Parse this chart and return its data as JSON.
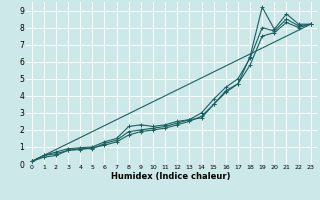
{
  "xlabel": "Humidex (Indice chaleur)",
  "bg_color": "#cce8e8",
  "grid_color": "#ffffff",
  "line_color": "#1a6060",
  "xlim": [
    -0.5,
    23.5
  ],
  "ylim": [
    0,
    9.5
  ],
  "xticks": [
    0,
    1,
    2,
    3,
    4,
    5,
    6,
    7,
    8,
    9,
    10,
    11,
    12,
    13,
    14,
    15,
    16,
    17,
    18,
    19,
    20,
    21,
    22,
    23
  ],
  "yticks": [
    0,
    1,
    2,
    3,
    4,
    5,
    6,
    7,
    8,
    9
  ],
  "line1_x": [
    0,
    1,
    2,
    3,
    4,
    5,
    6,
    7,
    8,
    9,
    10,
    11,
    12,
    13,
    14,
    15,
    16,
    17,
    18,
    19,
    20,
    21,
    22,
    23
  ],
  "line1_y": [
    0.15,
    0.5,
    0.7,
    0.9,
    0.95,
    1.0,
    1.3,
    1.5,
    2.2,
    2.3,
    2.2,
    2.3,
    2.5,
    2.6,
    2.7,
    3.5,
    4.3,
    4.7,
    6.3,
    9.2,
    7.9,
    8.8,
    8.2,
    8.2
  ],
  "line2_x": [
    0,
    1,
    2,
    3,
    4,
    5,
    6,
    7,
    8,
    9,
    10,
    11,
    12,
    13,
    14,
    15,
    16,
    17,
    18,
    19,
    20,
    21,
    22,
    23
  ],
  "line2_y": [
    0.15,
    0.5,
    0.6,
    0.8,
    0.9,
    0.9,
    1.2,
    1.4,
    1.9,
    2.0,
    2.1,
    2.2,
    2.4,
    2.6,
    3.0,
    3.8,
    4.5,
    5.0,
    6.2,
    8.0,
    7.8,
    8.5,
    8.1,
    8.2
  ],
  "line3_x": [
    0,
    1,
    2,
    3,
    4,
    5,
    6,
    7,
    8,
    9,
    10,
    11,
    12,
    13,
    14,
    15,
    16,
    17,
    18,
    19,
    20,
    21,
    22,
    23
  ],
  "line3_y": [
    0.15,
    0.4,
    0.5,
    0.8,
    0.85,
    0.95,
    1.1,
    1.3,
    1.7,
    1.9,
    2.0,
    2.1,
    2.3,
    2.5,
    2.8,
    3.5,
    4.2,
    4.7,
    5.8,
    7.5,
    7.7,
    8.3,
    8.0,
    8.2
  ],
  "line4_x": [
    0,
    23
  ],
  "line4_y": [
    0.15,
    8.2
  ]
}
